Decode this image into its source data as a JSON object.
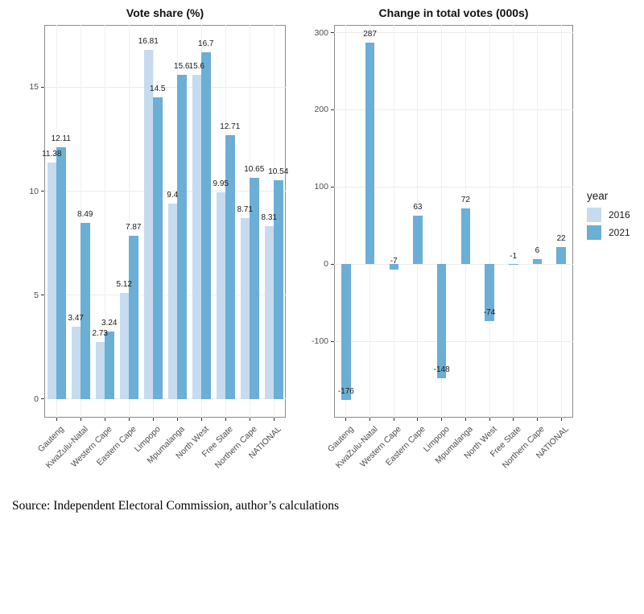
{
  "page": {
    "source_note": "Source: Independent Electoral Commission, author’s calculations"
  },
  "legend": {
    "title": "year",
    "items": [
      {
        "label": "2016",
        "color": "#c6dbef"
      },
      {
        "label": "2021",
        "color": "#6baed6"
      }
    ]
  },
  "chart_data": [
    {
      "type": "bar",
      "title": "Vote share (%)",
      "xlabel": "",
      "ylabel": "",
      "ylim": [
        -0.9,
        18.0
      ],
      "yticks": [
        0,
        5,
        10,
        15
      ],
      "grid": true,
      "legend_position": "right",
      "categories": [
        "Gauteng",
        "KwaZulu-Natal",
        "Western Cape",
        "Eastern Cape",
        "Limpopo",
        "Mpumalanga",
        "North West",
        "Free State",
        "Northern Cape",
        "NATIONAL"
      ],
      "series": [
        {
          "name": "2016",
          "color": "#c6dbef",
          "values": [
            11.38,
            3.47,
            2.73,
            5.12,
            16.81,
            9.4,
            15.6,
            9.95,
            8.71,
            8.31
          ]
        },
        {
          "name": "2021",
          "color": "#6baed6",
          "values": [
            12.11,
            8.49,
            3.24,
            7.87,
            14.5,
            15.6,
            16.7,
            12.71,
            10.65,
            10.54
          ]
        }
      ]
    },
    {
      "type": "bar",
      "title": "Change in total votes (000s)",
      "xlabel": "",
      "ylabel": "",
      "ylim": [
        -199,
        310
      ],
      "yticks": [
        -100,
        0,
        100,
        200,
        300
      ],
      "grid": true,
      "categories": [
        "Gauteng",
        "KwaZulu-Natal",
        "Western Cape",
        "Eastern Cape",
        "Limpopo",
        "Mpumalanga",
        "North West",
        "Free State",
        "Northern Cape",
        "NATIONAL"
      ],
      "series": [
        {
          "name": "2021",
          "color": "#6baed6",
          "values": [
            -176,
            287,
            -7,
            63,
            -148,
            72,
            -74,
            -1,
            6,
            22
          ]
        }
      ]
    }
  ]
}
